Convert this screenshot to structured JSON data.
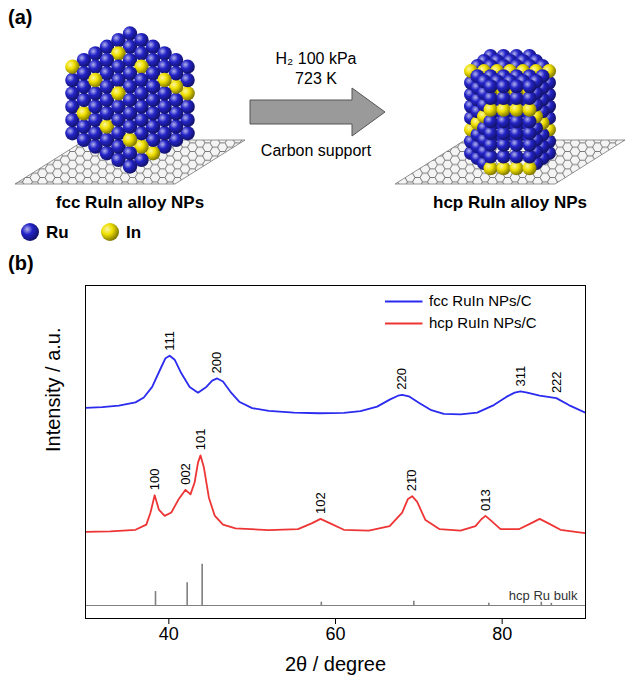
{
  "panel_labels": {
    "a": "(a)",
    "b": "(b)"
  },
  "diagram": {
    "left": {
      "caption": "fcc RuIn alloy NPs"
    },
    "right": {
      "caption": "hcp RuIn alloy NPs"
    },
    "arrow": {
      "above": [
        "H₂ 100 kPa",
        "723 K"
      ],
      "below": "Carbon support"
    },
    "legend": [
      {
        "name": "Ru",
        "color": "#2323c8"
      },
      {
        "name": "In",
        "color": "#f0e000"
      }
    ]
  },
  "chart_data": {
    "type": "line",
    "xlabel": "2θ / degree",
    "ylabel": "Intensity / a.u.",
    "xlim": [
      30,
      90
    ],
    "xticks": [
      40,
      60,
      80
    ],
    "ylim": [
      0,
      110
    ],
    "yticks": [],
    "tick_labels": "x",
    "legend": "top-right",
    "series": [
      {
        "name": "fcc RuIn NPs/C",
        "color": "#2b2bf0",
        "x": [
          30,
          32,
          34,
          36,
          37,
          38,
          39,
          39.6,
          40.1,
          40.7,
          41.5,
          42.5,
          43.5,
          44.5,
          45.2,
          45.8,
          46.5,
          47.5,
          48.5,
          50,
          52,
          55,
          58,
          61,
          63,
          65,
          66.5,
          67.5,
          68,
          68.8,
          70,
          71.5,
          73,
          75,
          77,
          79,
          80.5,
          81.5,
          82.2,
          83,
          84.5,
          86.5,
          88,
          90
        ],
        "values": [
          69.6,
          69.8,
          70.3,
          71.4,
          73,
          76.5,
          82.5,
          86,
          86.8,
          85.5,
          81,
          76.5,
          74.6,
          76.5,
          78.6,
          79.3,
          78.3,
          74.5,
          71.5,
          69.5,
          68.6,
          68,
          67.8,
          67.9,
          68.5,
          70,
          72.3,
          73.6,
          73.9,
          73.4,
          71.3,
          68.8,
          67.6,
          67.4,
          68,
          70.5,
          73.2,
          74.6,
          75,
          74.6,
          73.6,
          72.8,
          70.5,
          68
        ],
        "peak_labels": [
          {
            "x": 40.1,
            "label": "111"
          },
          {
            "x": 45.8,
            "label": "200"
          },
          {
            "x": 68,
            "label": "220"
          },
          {
            "x": 82.2,
            "label": "311"
          },
          {
            "x": 86.5,
            "label": "222"
          }
        ]
      },
      {
        "name": "hcp RuIn NPs/C",
        "color": "#ee3535",
        "x": [
          30,
          33,
          36,
          37.3,
          37.8,
          38.3,
          38.8,
          39.5,
          40.3,
          41.2,
          42,
          42.6,
          43.1,
          43.5,
          43.8,
          44.2,
          44.8,
          45.5,
          46.5,
          48,
          52,
          55.5,
          57.2,
          58.2,
          59.3,
          61,
          64,
          66.5,
          68,
          68.7,
          69.2,
          69.8,
          70.8,
          72.5,
          75,
          76.8,
          77.5,
          78,
          78.6,
          79.8,
          82,
          83.5,
          84.5,
          85.5,
          87,
          90
        ],
        "values": [
          28.6,
          28.8,
          29.3,
          31,
          35,
          40.7,
          36,
          33.9,
          35,
          39.5,
          42.5,
          41,
          45,
          51.5,
          53.9,
          50,
          40,
          34,
          31,
          29.8,
          29.2,
          29.5,
          31.5,
          32.9,
          31.5,
          29.3,
          29,
          30.5,
          35,
          39.5,
          40.4,
          38.5,
          32.5,
          29.5,
          29,
          30.5,
          32.8,
          33.9,
          32.5,
          29.5,
          29.5,
          31.5,
          32.9,
          31.5,
          29.3,
          28.2
        ],
        "peak_labels": [
          {
            "x": 38.3,
            "label": "100"
          },
          {
            "x": 42,
            "label": "002"
          },
          {
            "x": 43.8,
            "label": "101"
          },
          {
            "x": 58.2,
            "label": "102"
          },
          {
            "x": 69.2,
            "label": "21̄0"
          },
          {
            "x": 78,
            "label": "013"
          }
        ]
      }
    ],
    "reference": {
      "name": "hcp Ru bulk",
      "color": "#808080",
      "type": "stick",
      "baseline": 4.3,
      "x": [
        38.4,
        42.2,
        44.0,
        58.3,
        69.4,
        78.4,
        84.7,
        85.9
      ],
      "values": [
        8.9,
        11.8,
        17.9,
        5.4,
        5.7,
        5.0,
        5.4,
        5.0
      ]
    }
  }
}
